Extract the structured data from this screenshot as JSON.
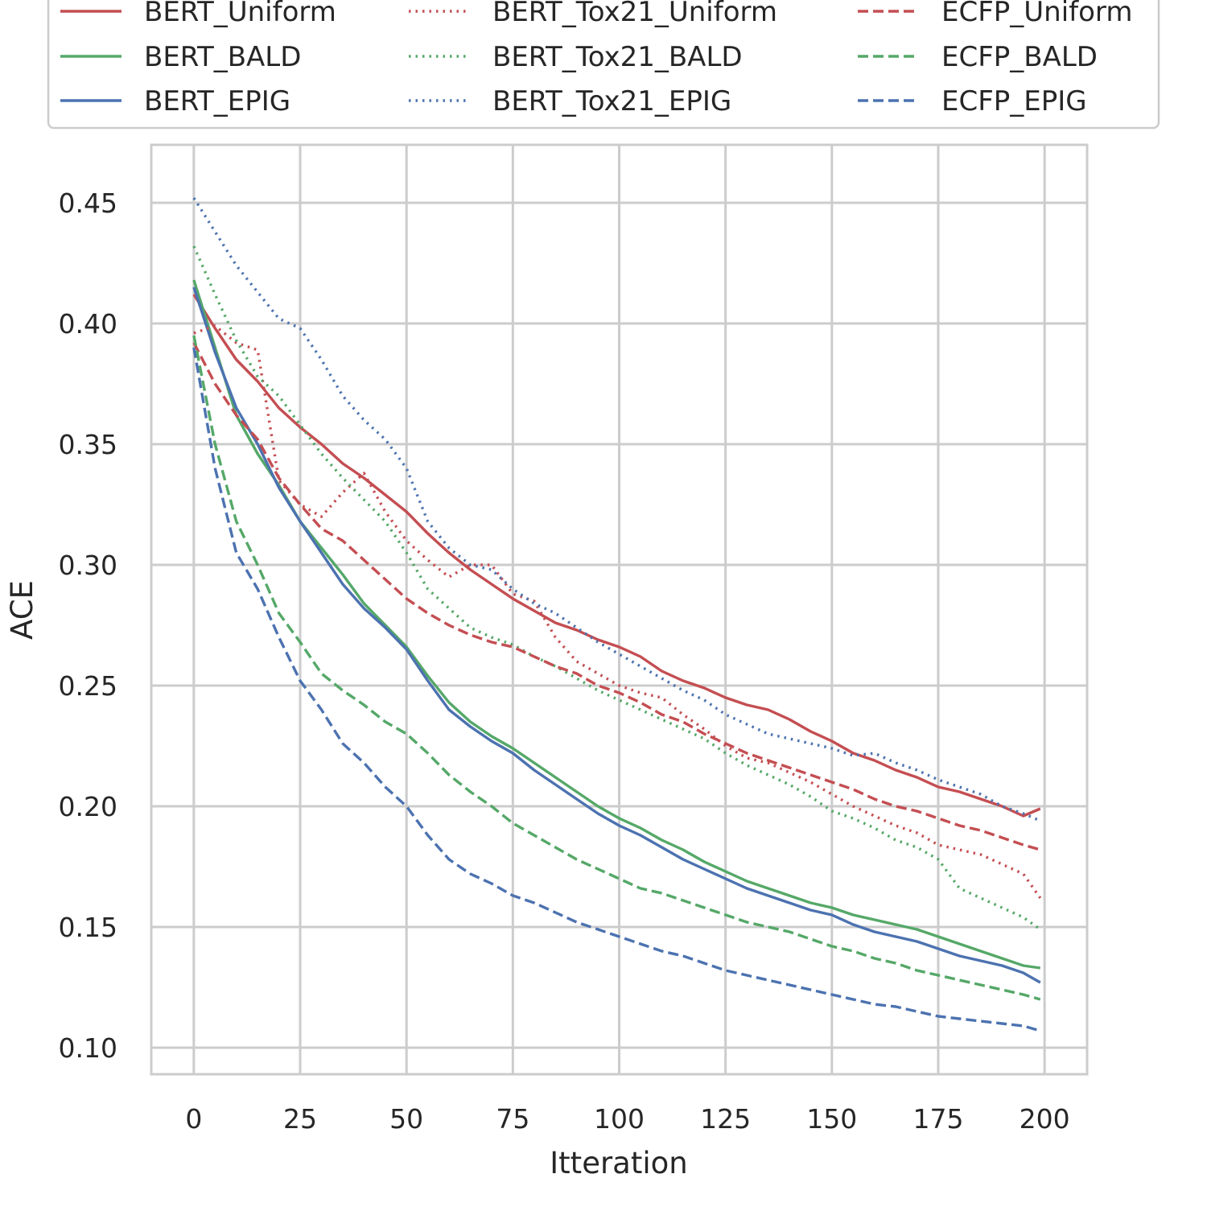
{
  "chart_data": {
    "type": "line",
    "xlabel": "Itteration",
    "ylabel": "ACE",
    "xlim": [
      -10,
      210
    ],
    "ylim": [
      0.089,
      0.474
    ],
    "xticks": [
      "0",
      "25",
      "50",
      "75",
      "100",
      "125",
      "150",
      "175",
      "200"
    ],
    "yticks": [
      "0.10",
      "0.15",
      "0.20",
      "0.25",
      "0.30",
      "0.35",
      "0.40",
      "0.45"
    ],
    "grid": true,
    "legend": {
      "placement": "top",
      "columns": 3
    },
    "colors": {
      "red": "#c44e52",
      "green": "#55a868",
      "blue": "#4c72b0"
    },
    "series": [
      {
        "name": "BERT_Uniform",
        "color": "#c44e52",
        "style": "solid",
        "x": [
          0,
          5,
          10,
          15,
          20,
          25,
          30,
          35,
          40,
          45,
          50,
          55,
          60,
          65,
          70,
          75,
          80,
          85,
          90,
          95,
          100,
          105,
          110,
          115,
          120,
          125,
          130,
          135,
          140,
          145,
          150,
          155,
          160,
          165,
          170,
          175,
          180,
          185,
          190,
          195,
          199
        ],
        "y": [
          0.412,
          0.398,
          0.385,
          0.376,
          0.365,
          0.357,
          0.35,
          0.342,
          0.336,
          0.329,
          0.322,
          0.313,
          0.305,
          0.298,
          0.292,
          0.286,
          0.281,
          0.276,
          0.273,
          0.269,
          0.266,
          0.262,
          0.256,
          0.252,
          0.249,
          0.245,
          0.242,
          0.24,
          0.236,
          0.231,
          0.227,
          0.222,
          0.219,
          0.215,
          0.212,
          0.208,
          0.206,
          0.203,
          0.2,
          0.196,
          0.199
        ]
      },
      {
        "name": "BERT_BALD",
        "color": "#55a868",
        "style": "solid",
        "x": [
          0,
          5,
          10,
          15,
          20,
          25,
          30,
          35,
          40,
          45,
          50,
          55,
          60,
          65,
          70,
          75,
          80,
          85,
          90,
          95,
          100,
          105,
          110,
          115,
          120,
          125,
          130,
          135,
          140,
          145,
          150,
          155,
          160,
          165,
          170,
          175,
          180,
          185,
          190,
          195,
          199
        ],
        "y": [
          0.418,
          0.39,
          0.362,
          0.346,
          0.333,
          0.318,
          0.307,
          0.296,
          0.284,
          0.275,
          0.266,
          0.254,
          0.243,
          0.235,
          0.229,
          0.224,
          0.218,
          0.212,
          0.206,
          0.2,
          0.195,
          0.191,
          0.186,
          0.182,
          0.177,
          0.173,
          0.169,
          0.166,
          0.163,
          0.16,
          0.158,
          0.155,
          0.153,
          0.151,
          0.149,
          0.146,
          0.143,
          0.14,
          0.137,
          0.134,
          0.133
        ]
      },
      {
        "name": "BERT_EPIG",
        "color": "#4c72b0",
        "style": "solid",
        "x": [
          0,
          5,
          10,
          15,
          20,
          25,
          30,
          35,
          40,
          45,
          50,
          55,
          60,
          65,
          70,
          75,
          80,
          85,
          90,
          95,
          100,
          105,
          110,
          115,
          120,
          125,
          130,
          135,
          140,
          145,
          150,
          155,
          160,
          165,
          170,
          175,
          180,
          185,
          190,
          195,
          199
        ],
        "y": [
          0.415,
          0.388,
          0.365,
          0.35,
          0.332,
          0.318,
          0.305,
          0.292,
          0.282,
          0.274,
          0.265,
          0.252,
          0.24,
          0.233,
          0.227,
          0.222,
          0.215,
          0.209,
          0.203,
          0.197,
          0.192,
          0.188,
          0.183,
          0.178,
          0.174,
          0.17,
          0.166,
          0.163,
          0.16,
          0.157,
          0.155,
          0.151,
          0.148,
          0.146,
          0.144,
          0.141,
          0.138,
          0.136,
          0.134,
          0.131,
          0.127
        ]
      },
      {
        "name": "BERT_Tox21_Uniform",
        "color": "#c44e52",
        "style": "dotted",
        "x": [
          0,
          5,
          10,
          15,
          20,
          25,
          30,
          35,
          40,
          45,
          50,
          55,
          60,
          65,
          70,
          75,
          80,
          85,
          90,
          95,
          100,
          105,
          110,
          115,
          120,
          125,
          130,
          135,
          140,
          145,
          150,
          155,
          160,
          165,
          170,
          175,
          180,
          185,
          190,
          195,
          199
        ],
        "y": [
          0.396,
          0.399,
          0.392,
          0.389,
          0.335,
          0.325,
          0.32,
          0.33,
          0.338,
          0.322,
          0.31,
          0.302,
          0.295,
          0.3,
          0.3,
          0.288,
          0.285,
          0.27,
          0.26,
          0.255,
          0.25,
          0.247,
          0.245,
          0.238,
          0.232,
          0.225,
          0.22,
          0.218,
          0.214,
          0.21,
          0.205,
          0.2,
          0.196,
          0.192,
          0.189,
          0.184,
          0.182,
          0.18,
          0.176,
          0.172,
          0.162
        ]
      },
      {
        "name": "BERT_Tox21_BALD",
        "color": "#55a868",
        "style": "dotted",
        "x": [
          0,
          5,
          10,
          15,
          20,
          25,
          30,
          35,
          40,
          45,
          50,
          55,
          60,
          65,
          70,
          75,
          80,
          85,
          90,
          95,
          100,
          105,
          110,
          115,
          120,
          125,
          130,
          135,
          140,
          145,
          150,
          155,
          160,
          165,
          170,
          175,
          180,
          185,
          190,
          195,
          199
        ],
        "y": [
          0.432,
          0.412,
          0.393,
          0.378,
          0.37,
          0.358,
          0.346,
          0.336,
          0.327,
          0.318,
          0.305,
          0.29,
          0.282,
          0.274,
          0.27,
          0.267,
          0.262,
          0.258,
          0.253,
          0.248,
          0.244,
          0.24,
          0.236,
          0.232,
          0.228,
          0.222,
          0.217,
          0.213,
          0.209,
          0.204,
          0.198,
          0.195,
          0.191,
          0.186,
          0.183,
          0.178,
          0.166,
          0.162,
          0.158,
          0.154,
          0.149
        ]
      },
      {
        "name": "BERT_Tox21_EPIG",
        "color": "#4c72b0",
        "style": "dotted",
        "x": [
          0,
          5,
          10,
          15,
          20,
          25,
          30,
          35,
          40,
          45,
          50,
          55,
          60,
          65,
          70,
          75,
          80,
          85,
          90,
          95,
          100,
          105,
          110,
          115,
          120,
          125,
          130,
          135,
          140,
          145,
          150,
          155,
          160,
          165,
          170,
          175,
          180,
          185,
          190,
          195,
          199
        ],
        "y": [
          0.452,
          0.438,
          0.424,
          0.413,
          0.402,
          0.398,
          0.385,
          0.37,
          0.36,
          0.352,
          0.34,
          0.318,
          0.307,
          0.3,
          0.298,
          0.29,
          0.284,
          0.28,
          0.274,
          0.268,
          0.263,
          0.258,
          0.253,
          0.248,
          0.244,
          0.238,
          0.234,
          0.23,
          0.228,
          0.226,
          0.224,
          0.221,
          0.222,
          0.218,
          0.215,
          0.211,
          0.208,
          0.205,
          0.2,
          0.197,
          0.194
        ]
      },
      {
        "name": "ECFP_Uniform",
        "color": "#c44e52",
        "style": "dashed",
        "x": [
          0,
          5,
          10,
          15,
          20,
          25,
          30,
          35,
          40,
          45,
          50,
          55,
          60,
          65,
          70,
          75,
          80,
          85,
          90,
          95,
          100,
          105,
          110,
          115,
          120,
          125,
          130,
          135,
          140,
          145,
          150,
          155,
          160,
          165,
          170,
          175,
          180,
          185,
          190,
          195,
          199
        ],
        "y": [
          0.392,
          0.375,
          0.362,
          0.352,
          0.336,
          0.325,
          0.315,
          0.31,
          0.302,
          0.294,
          0.286,
          0.28,
          0.275,
          0.271,
          0.268,
          0.266,
          0.262,
          0.258,
          0.255,
          0.25,
          0.247,
          0.243,
          0.238,
          0.235,
          0.23,
          0.226,
          0.222,
          0.219,
          0.216,
          0.213,
          0.21,
          0.207,
          0.203,
          0.2,
          0.198,
          0.195,
          0.192,
          0.19,
          0.187,
          0.184,
          0.182
        ]
      },
      {
        "name": "ECFP_BALD",
        "color": "#55a868",
        "style": "dashed",
        "x": [
          0,
          5,
          10,
          15,
          20,
          25,
          30,
          35,
          40,
          45,
          50,
          55,
          60,
          65,
          70,
          75,
          80,
          85,
          90,
          95,
          100,
          105,
          110,
          115,
          120,
          125,
          130,
          135,
          140,
          145,
          150,
          155,
          160,
          165,
          170,
          175,
          180,
          185,
          190,
          195,
          199
        ],
        "y": [
          0.395,
          0.35,
          0.318,
          0.3,
          0.28,
          0.268,
          0.255,
          0.248,
          0.242,
          0.235,
          0.23,
          0.222,
          0.213,
          0.206,
          0.2,
          0.193,
          0.188,
          0.183,
          0.178,
          0.174,
          0.17,
          0.166,
          0.164,
          0.161,
          0.158,
          0.155,
          0.152,
          0.15,
          0.148,
          0.145,
          0.142,
          0.14,
          0.137,
          0.135,
          0.132,
          0.13,
          0.128,
          0.126,
          0.124,
          0.122,
          0.12
        ]
      },
      {
        "name": "ECFP_EPIG",
        "color": "#4c72b0",
        "style": "dashed",
        "x": [
          0,
          5,
          10,
          15,
          20,
          25,
          30,
          35,
          40,
          45,
          50,
          55,
          60,
          65,
          70,
          75,
          80,
          85,
          90,
          95,
          100,
          105,
          110,
          115,
          120,
          125,
          130,
          135,
          140,
          145,
          150,
          155,
          160,
          165,
          170,
          175,
          180,
          185,
          190,
          195,
          199
        ],
        "y": [
          0.39,
          0.34,
          0.305,
          0.29,
          0.27,
          0.252,
          0.24,
          0.226,
          0.218,
          0.208,
          0.2,
          0.188,
          0.178,
          0.172,
          0.168,
          0.163,
          0.16,
          0.156,
          0.152,
          0.149,
          0.146,
          0.143,
          0.14,
          0.138,
          0.135,
          0.132,
          0.13,
          0.128,
          0.126,
          0.124,
          0.122,
          0.12,
          0.118,
          0.117,
          0.115,
          0.113,
          0.112,
          0.111,
          0.11,
          0.109,
          0.107
        ]
      }
    ]
  }
}
